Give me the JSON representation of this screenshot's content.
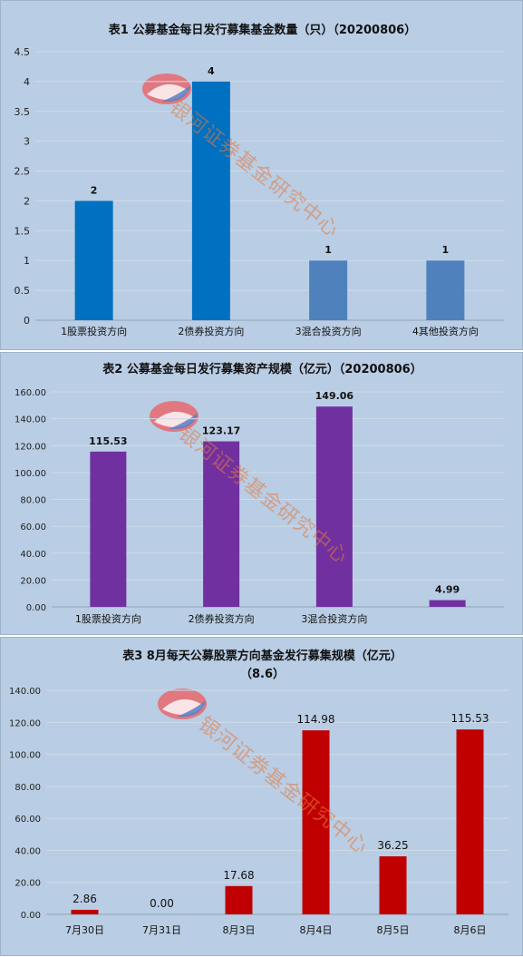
{
  "watermark": "银河证券基金研究中心",
  "chart_data": [
    {
      "type": "bar",
      "title": "表1  公募基金每日发行募集基金数量（只）（20200806）",
      "categories": [
        "1股票投资方向",
        "2债券投资方向",
        "3混合投资方向",
        "4其他投资方向"
      ],
      "values": [
        2,
        4,
        1,
        1
      ],
      "value_labels": [
        "2",
        "4",
        "1",
        "1"
      ],
      "ylim": [
        0,
        4.5
      ],
      "yticks": [
        "0",
        "0.5",
        "1",
        "1.5",
        "2",
        "2.5",
        "3",
        "3.5",
        "4",
        "4.5"
      ],
      "bar_colors": [
        "#0070c0",
        "#0070c0",
        "#4f81bd",
        "#4f81bd"
      ],
      "grid": true
    },
    {
      "type": "bar",
      "title": "表2  公募基金每日发行募集资产规模（亿元）（20200806）",
      "categories": [
        "1股票投资方向",
        "2债券投资方向",
        "3混合投资方向",
        ""
      ],
      "values": [
        115.53,
        123.17,
        149.06,
        4.99
      ],
      "value_labels": [
        "115.53",
        "123.17",
        "149.06",
        "4.99"
      ],
      "ylim": [
        0,
        160
      ],
      "yticks": [
        "0.00",
        "20.00",
        "40.00",
        "60.00",
        "80.00",
        "100.00",
        "120.00",
        "140.00",
        "160.00"
      ],
      "bar_colors": [
        "#7030a0",
        "#7030a0",
        "#7030a0",
        "#7030a0"
      ],
      "grid": true
    },
    {
      "type": "bar",
      "title": "表3   8月每天公募股票方向基金发行募集规模（亿元）",
      "subtitle": "（8.6）",
      "categories": [
        "7月30日",
        "7月31日",
        "8月3日",
        "8月4日",
        "8月5日",
        "8月6日"
      ],
      "values": [
        2.86,
        0.0,
        17.68,
        114.98,
        36.25,
        115.53
      ],
      "value_labels": [
        "2.86",
        "0.00",
        "17.68",
        "114.98",
        "36.25",
        "115.53"
      ],
      "ylim": [
        0,
        140
      ],
      "yticks": [
        "0.00",
        "20.00",
        "40.00",
        "60.00",
        "80.00",
        "100.00",
        "120.00",
        "140.00"
      ],
      "bar_colors": [
        "#c00000",
        "#c00000",
        "#c00000",
        "#c00000",
        "#c00000",
        "#c00000"
      ],
      "grid": true
    }
  ]
}
